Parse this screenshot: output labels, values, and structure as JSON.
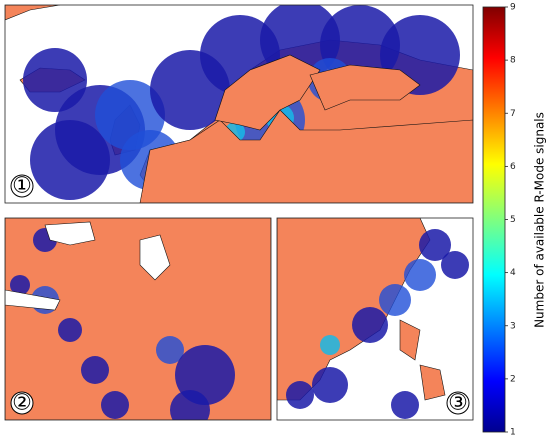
{
  "colorbar": {
    "label": "Number of available R-Mode signals",
    "lim": [
      1,
      9
    ],
    "ticks": [
      1,
      2,
      3,
      4,
      5,
      6,
      7,
      8,
      9
    ]
  },
  "panels": [
    {
      "label": "①"
    },
    {
      "label": "②"
    },
    {
      "label": "③"
    }
  ]
}
